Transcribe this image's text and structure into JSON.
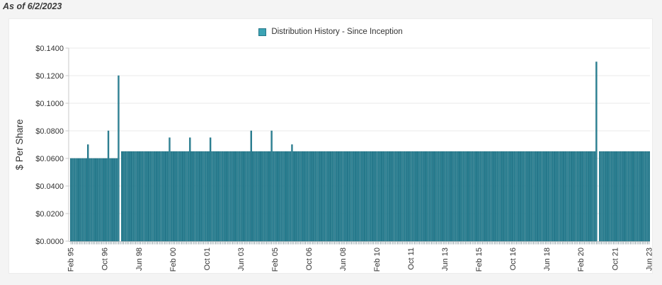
{
  "page": {
    "as_of": "As of 6/2/2023"
  },
  "legend": {
    "label": "Distribution History - Since Inception"
  },
  "chart_data": {
    "type": "bar",
    "title": "Distribution History - Since Inception",
    "ylabel": "$ Per Share",
    "xlabel": "",
    "ylim": [
      0,
      0.14
    ],
    "ytick_step": 0.02,
    "yticks": [
      "$0.0000",
      "$0.0200",
      "$0.0400",
      "$0.0600",
      "$0.0800",
      "$0.1000",
      "$0.1200",
      "$0.1400"
    ],
    "grid": true,
    "legend_position": "top-center",
    "frequency": "monthly",
    "x_start_label": "Feb 1995",
    "x_end_label": "Jun 2023",
    "total_months": 341,
    "xtick_every_months": 20,
    "xtick_labels": [
      "Feb 95",
      "Oct 96",
      "Jun 98",
      "Feb 00",
      "Oct 01",
      "Jun 03",
      "Feb 05",
      "Oct 06",
      "Jun 08",
      "Feb 10",
      "Oct 11",
      "Jun 13",
      "Feb 15",
      "Oct 16",
      "Jun 18",
      "Feb 20",
      "Oct 21",
      "Jun 23"
    ],
    "series": [
      {
        "name": "Distribution History - Since Inception",
        "unit": "$ per share",
        "base_segments": [
          {
            "from_index": 0,
            "to_index": 29,
            "value": 0.06,
            "period": "Feb 1995 - Jul 1997"
          },
          {
            "from_index": 30,
            "to_index": 340,
            "value": 0.065,
            "period": "Aug 1997 - Jun 2023"
          }
        ],
        "special_distributions": [
          {
            "index": 10,
            "month": "Dec 1995",
            "value": 0.07
          },
          {
            "index": 22,
            "month": "Dec 1996",
            "value": 0.08
          },
          {
            "index": 28,
            "month": "Jun 1997",
            "value": 0.12
          },
          {
            "index": 29,
            "month": "Jul 1997",
            "value": 0.0
          },
          {
            "index": 58,
            "month": "Dec 1999",
            "value": 0.075
          },
          {
            "index": 70,
            "month": "Dec 2000",
            "value": 0.075
          },
          {
            "index": 82,
            "month": "Dec 2001",
            "value": 0.075
          },
          {
            "index": 106,
            "month": "Dec 2003",
            "value": 0.08
          },
          {
            "index": 118,
            "month": "Dec 2004",
            "value": 0.08
          },
          {
            "index": 130,
            "month": "Dec 2005",
            "value": 0.07
          },
          {
            "index": 309,
            "month": "Nov 2020",
            "value": 0.13
          },
          {
            "index": 310,
            "month": "Dec 2020",
            "value": 0.0
          }
        ]
      }
    ],
    "colors": {
      "bar_fill": "#2E8496",
      "bar_stroke": "#1A6B7E",
      "legend_swatch": "#3BA3B4",
      "legend_swatch_border": "#27788A",
      "grid": "#E9E9E9",
      "axis": "#C9C9C9",
      "month_tick": "#6E8288",
      "text": "#333333",
      "page_bg": "#F4F4F4",
      "panel_bg": "#FFFFFF"
    }
  }
}
